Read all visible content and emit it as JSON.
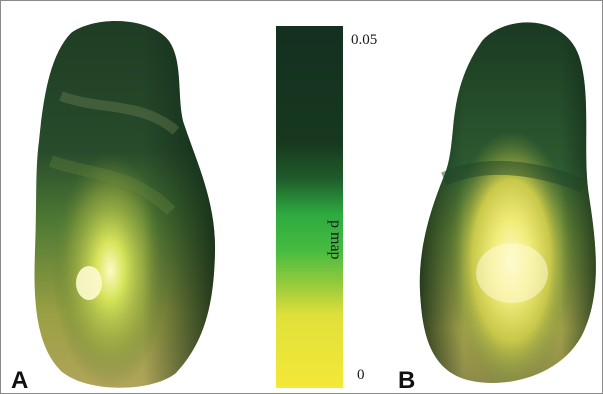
{
  "colorbar": {
    "max_label": "0.05",
    "min_label": "0",
    "title": "p map",
    "range": [
      0,
      0.05
    ],
    "colors": {
      "high": "#143020",
      "mid_dark": "#1a4a28",
      "mid": "#2eaa40",
      "low_mid": "#9ccc3c",
      "low": "#f4e838"
    }
  },
  "panels": [
    {
      "letter": "A",
      "subject": "left-render"
    },
    {
      "letter": "B",
      "subject": "right-render"
    }
  ]
}
